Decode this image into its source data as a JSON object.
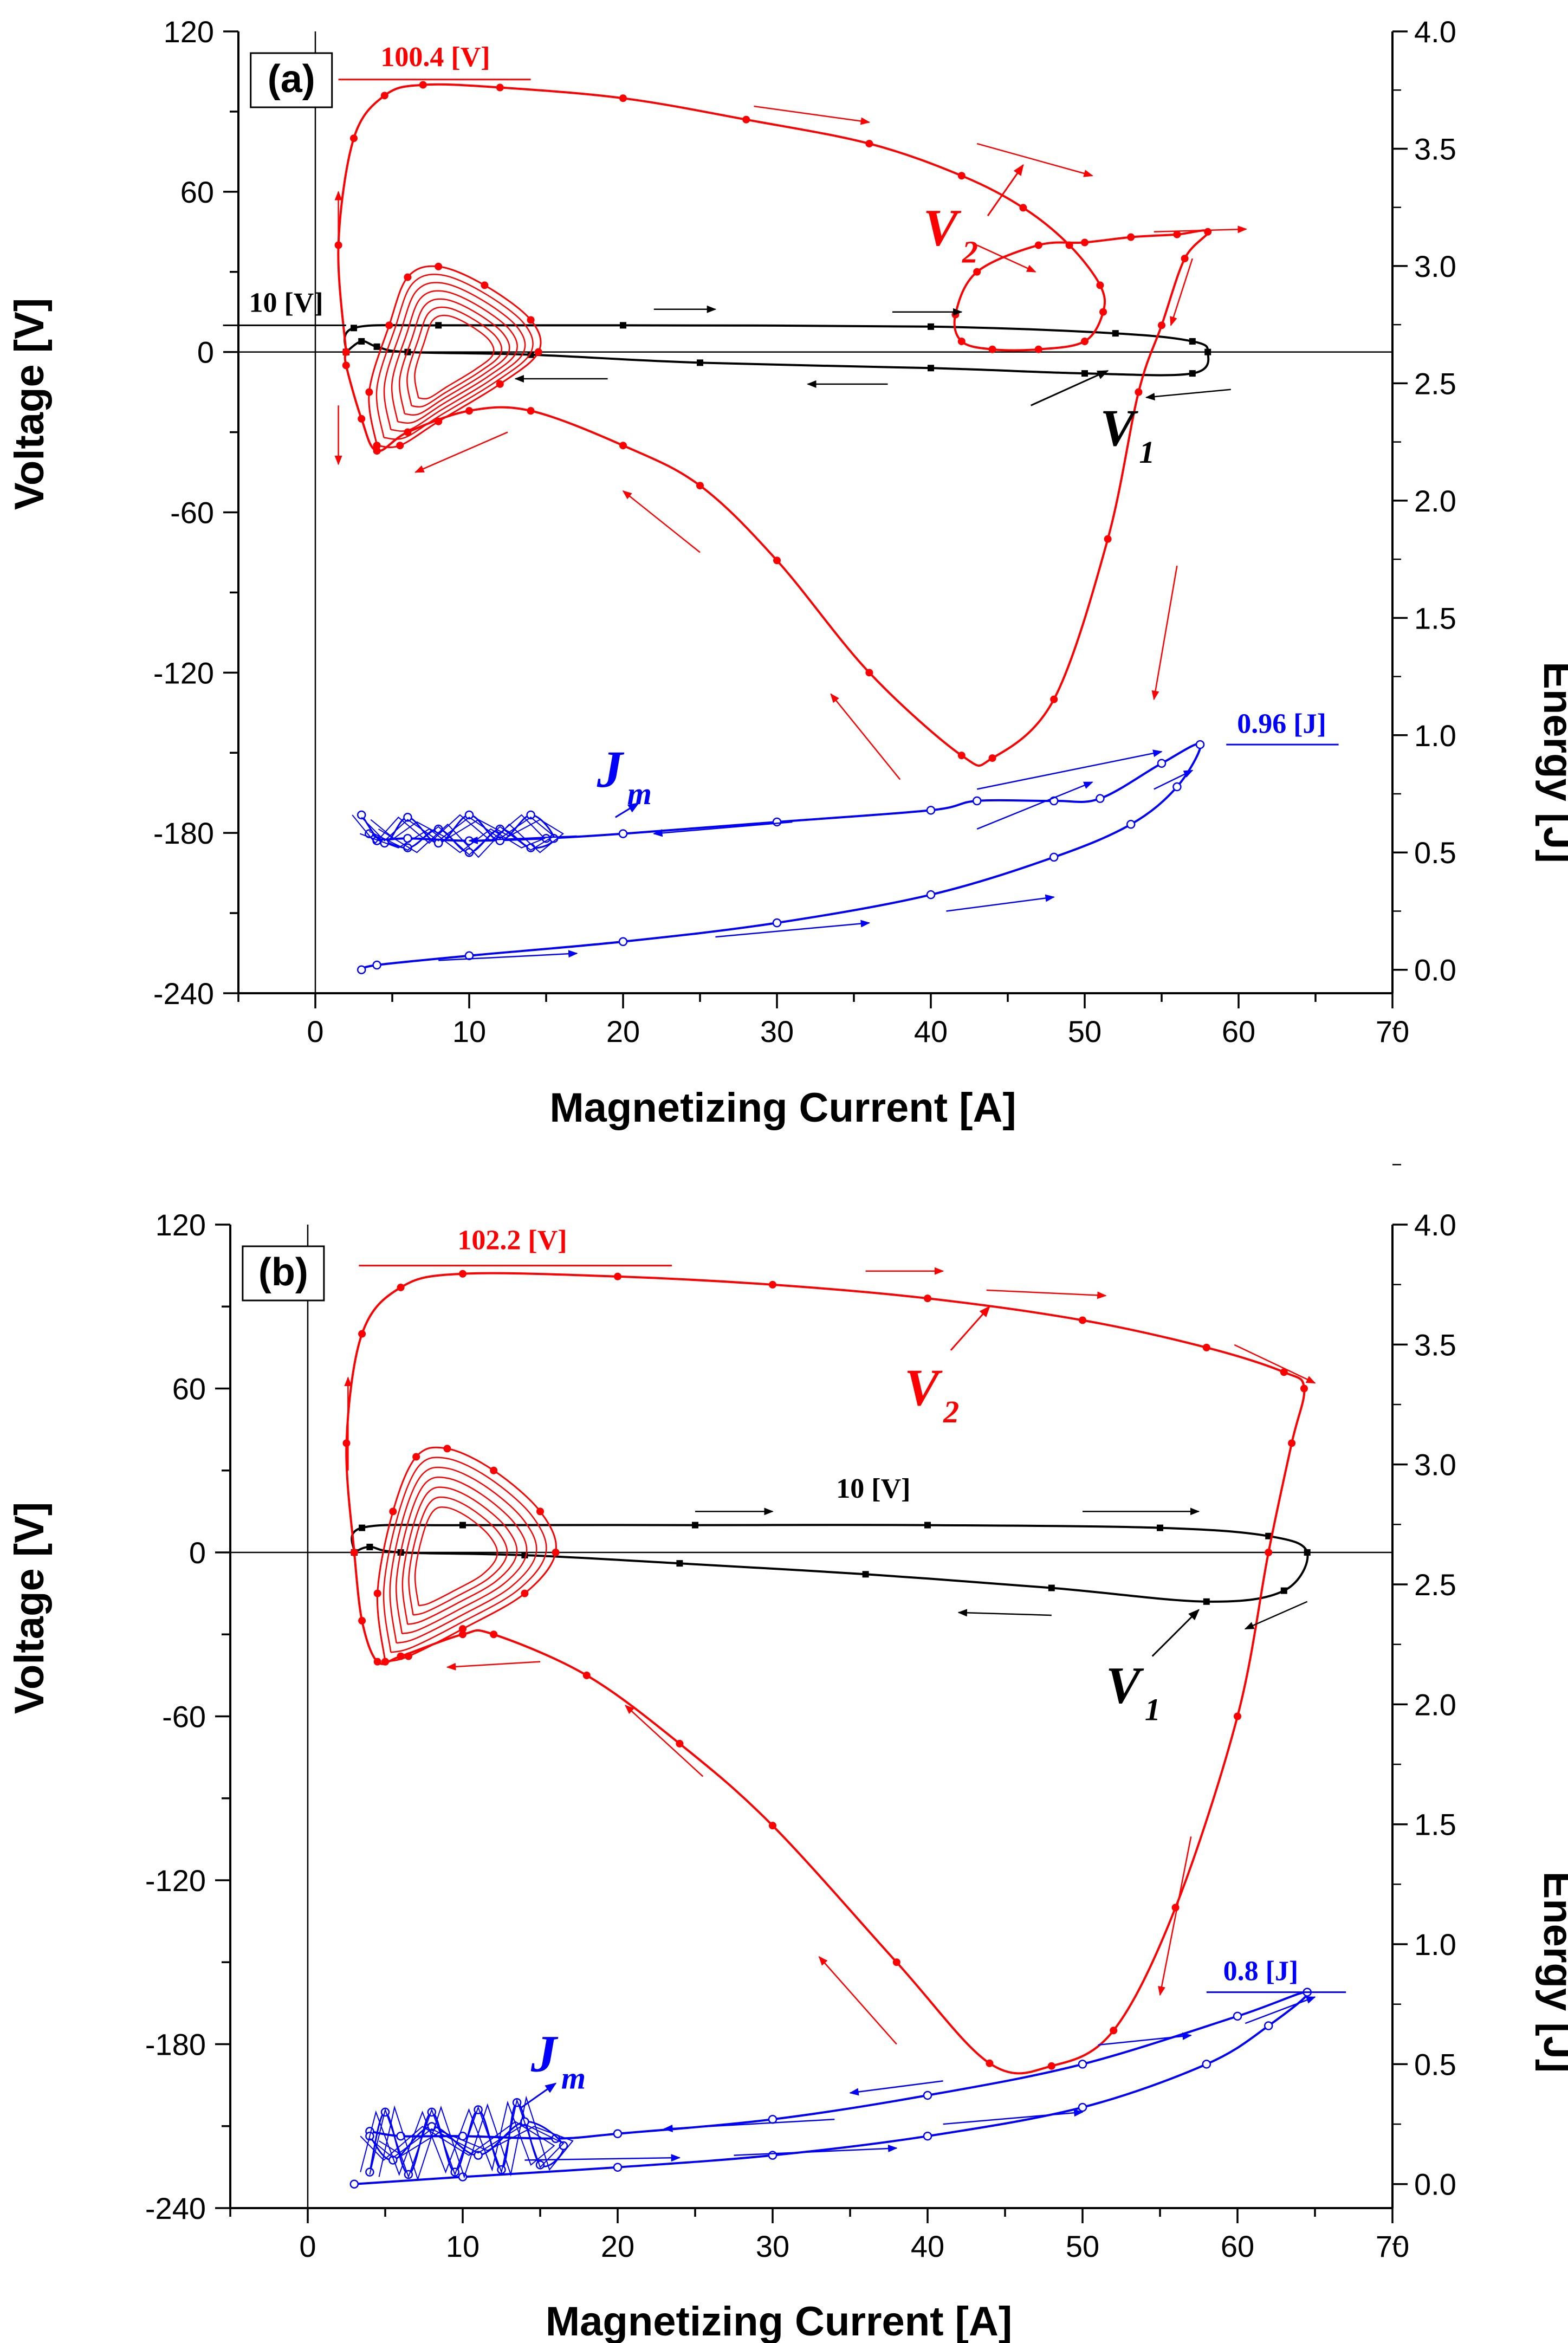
{
  "figure_kind": "Two-panel dual-axis parametric plot",
  "colors": {
    "v1": "#000000",
    "v2": "#ff0000",
    "jm": "#0000ff",
    "axis": "#000000"
  },
  "chart_data": [
    {
      "panel_label": "(a)",
      "type": "line",
      "xlabel": "Magnetizing Current [A]",
      "ylabel_left": "Voltage [V]",
      "ylabel_right": "Energy [J]",
      "xlim": [
        -5,
        70
      ],
      "ylim_left": [
        -240,
        120
      ],
      "ylim_right": [
        -0.1,
        4.0
      ],
      "x_ticks": [
        "0",
        "10",
        "20",
        "30",
        "40",
        "50",
        "60",
        "70"
      ],
      "y_left_ticks": [
        "120",
        "60",
        "0",
        "-60",
        "-120",
        "-180",
        "-240"
      ],
      "y_right_ticks": [
        "4.0",
        "3.5",
        "3.0",
        "2.5",
        "2.0",
        "1.5",
        "1.0",
        "0.5",
        "0.0"
      ],
      "annotations": {
        "v2_peak": "100.4 [V]",
        "v1_peak": "10 [V]",
        "jm_peak": "0.96 [J]"
      },
      "series": [
        {
          "name": "V",
          "sub": "1",
          "axis": "left",
          "color": "#000000",
          "points": [
            [
              2,
              0
            ],
            [
              2.5,
              9
            ],
            [
              8,
              10
            ],
            [
              20,
              10
            ],
            [
              40,
              9.5
            ],
            [
              52,
              7
            ],
            [
              57,
              4
            ],
            [
              58,
              0
            ],
            [
              57,
              -8
            ],
            [
              50,
              -8
            ],
            [
              40,
              -6
            ],
            [
              25,
              -4
            ],
            [
              14,
              -1
            ],
            [
              6,
              0
            ],
            [
              4,
              2
            ],
            [
              3,
              4
            ],
            [
              2,
              0
            ]
          ]
        },
        {
          "name": "V",
          "sub": "2",
          "axis": "left",
          "color": "#ff0000",
          "points": [
            [
              2,
              0
            ],
            [
              1.5,
              40
            ],
            [
              2.5,
              80
            ],
            [
              4.5,
              96
            ],
            [
              7,
              100
            ],
            [
              12,
              99
            ],
            [
              20,
              95
            ],
            [
              28,
              87
            ],
            [
              36,
              78
            ],
            [
              42,
              66
            ],
            [
              46,
              54
            ],
            [
              49,
              40
            ],
            [
              51,
              25
            ],
            [
              51.2,
              15
            ],
            [
              50,
              4
            ],
            [
              47,
              1
            ],
            [
              44,
              1
            ],
            [
              42,
              4
            ],
            [
              41.6,
              14
            ],
            [
              43,
              30
            ],
            [
              47,
              40
            ],
            [
              50,
              41
            ],
            [
              53,
              43
            ],
            [
              56,
              44
            ],
            [
              58,
              45
            ],
            [
              56.5,
              35
            ],
            [
              55,
              10
            ],
            [
              53.5,
              -15
            ],
            [
              51.5,
              -70
            ],
            [
              48,
              -130
            ],
            [
              44,
              -152
            ],
            [
              42,
              -151
            ],
            [
              36,
              -120
            ],
            [
              30,
              -78
            ],
            [
              25,
              -50
            ],
            [
              20,
              -35
            ],
            [
              14,
              -22
            ],
            [
              10,
              -22
            ],
            [
              6,
              -30
            ],
            [
              4,
              -37
            ],
            [
              3,
              -25
            ],
            [
              2,
              -5
            ],
            [
              2,
              0
            ]
          ]
        },
        {
          "name": "V",
          "sub": "2",
          "axis": "left",
          "color": "#ff0000",
          "kind": "oscillation",
          "points": [
            [
              4,
              -35
            ],
            [
              3.5,
              -15
            ],
            [
              4.8,
              10
            ],
            [
              6,
              28
            ],
            [
              8,
              32
            ],
            [
              11,
              25
            ],
            [
              14,
              12
            ],
            [
              14.5,
              0
            ],
            [
              12,
              -12
            ],
            [
              8,
              -26
            ],
            [
              5.5,
              -35
            ],
            [
              4,
              -35
            ]
          ]
        },
        {
          "name": "J",
          "sub": "m",
          "axis": "right",
          "color": "#0000ff",
          "points": [
            [
              3,
              0.0
            ],
            [
              4,
              0.02
            ],
            [
              10,
              0.06
            ],
            [
              20,
              0.12
            ],
            [
              30,
              0.2
            ],
            [
              40,
              0.32
            ],
            [
              48,
              0.48
            ],
            [
              53,
              0.62
            ],
            [
              56,
              0.78
            ],
            [
              57.5,
              0.96
            ],
            [
              55,
              0.88
            ],
            [
              51,
              0.73
            ],
            [
              48,
              0.72
            ],
            [
              43,
              0.72
            ],
            [
              40,
              0.68
            ],
            [
              30,
              0.63
            ],
            [
              20,
              0.58
            ],
            [
              15,
              0.56
            ],
            [
              10,
              0.55
            ],
            [
              6,
              0.56
            ],
            [
              4,
              0.55
            ]
          ]
        },
        {
          "name": "J",
          "sub": "m",
          "axis": "right",
          "color": "#0000ff",
          "kind": "oscillation",
          "points": [
            [
              3,
              0.66
            ],
            [
              4.5,
              0.54
            ],
            [
              6,
              0.65
            ],
            [
              8,
              0.54
            ],
            [
              10,
              0.66
            ],
            [
              12,
              0.55
            ],
            [
              14,
              0.66
            ],
            [
              15.5,
              0.56
            ],
            [
              14,
              0.52
            ],
            [
              12,
              0.6
            ],
            [
              10,
              0.5
            ],
            [
              8,
              0.6
            ],
            [
              6,
              0.52
            ],
            [
              3.5,
              0.58
            ]
          ]
        }
      ]
    },
    {
      "panel_label": "(b)",
      "type": "line",
      "xlabel": "Magnetizing Current [A]",
      "ylabel_left": "Voltage [V]",
      "ylabel_right": "Energy [J]",
      "xlim": [
        -5,
        70
      ],
      "ylim_left": [
        -240,
        120
      ],
      "ylim_right": [
        -0.1,
        4.0
      ],
      "x_ticks": [
        "0",
        "10",
        "20",
        "30",
        "40",
        "50",
        "60",
        "70"
      ],
      "y_left_ticks": [
        "120",
        "60",
        "0",
        "-60",
        "-120",
        "-180",
        "-240"
      ],
      "y_right_ticks": [
        "4.0",
        "3.5",
        "3.0",
        "2.5",
        "2.0",
        "1.5",
        "1.0",
        "0.5",
        "0.0"
      ],
      "annotations": {
        "v2_peak": "102.2 [V]",
        "v1_peak": "10 [V]",
        "jm_peak": "0.8 [J]"
      },
      "series": [
        {
          "name": "V",
          "sub": "1",
          "axis": "left",
          "color": "#000000",
          "points": [
            [
              3,
              0
            ],
            [
              3.5,
              9
            ],
            [
              10,
              10
            ],
            [
              25,
              10
            ],
            [
              40,
              10
            ],
            [
              55,
              9
            ],
            [
              62,
              6
            ],
            [
              64.5,
              0
            ],
            [
              63,
              -14
            ],
            [
              58,
              -18
            ],
            [
              48,
              -13
            ],
            [
              36,
              -8
            ],
            [
              24,
              -4
            ],
            [
              14,
              -1
            ],
            [
              6,
              0
            ],
            [
              4,
              2
            ],
            [
              3,
              0
            ]
          ]
        },
        {
          "name": "V",
          "sub": "2",
          "axis": "left",
          "color": "#ff0000",
          "points": [
            [
              3,
              0
            ],
            [
              2.5,
              40
            ],
            [
              3.5,
              80
            ],
            [
              6,
              97
            ],
            [
              10,
              102
            ],
            [
              20,
              101
            ],
            [
              30,
              98
            ],
            [
              40,
              93
            ],
            [
              50,
              85
            ],
            [
              58,
              75
            ],
            [
              63,
              66
            ],
            [
              64.3,
              60
            ],
            [
              63.5,
              40
            ],
            [
              62,
              0
            ],
            [
              60,
              -60
            ],
            [
              56,
              -130
            ],
            [
              52,
              -175
            ],
            [
              48,
              -188
            ],
            [
              44,
              -187
            ],
            [
              38,
              -150
            ],
            [
              30,
              -100
            ],
            [
              24,
              -70
            ],
            [
              18,
              -45
            ],
            [
              12,
              -30
            ],
            [
              10,
              -30
            ],
            [
              6,
              -38
            ],
            [
              4.5,
              -40
            ],
            [
              3.5,
              -25
            ],
            [
              3,
              0
            ]
          ]
        },
        {
          "name": "V",
          "sub": "2",
          "axis": "left",
          "color": "#ff0000",
          "kind": "oscillation",
          "points": [
            [
              5,
              -40
            ],
            [
              4.5,
              -15
            ],
            [
              5.5,
              15
            ],
            [
              7,
              35
            ],
            [
              9,
              38
            ],
            [
              12,
              30
            ],
            [
              15,
              15
            ],
            [
              16,
              0
            ],
            [
              14,
              -15
            ],
            [
              10,
              -28
            ],
            [
              6.5,
              -38
            ],
            [
              5,
              -40
            ]
          ]
        },
        {
          "name": "J",
          "sub": "m",
          "axis": "right",
          "color": "#0000ff",
          "points": [
            [
              3,
              0.0
            ],
            [
              10,
              0.03
            ],
            [
              20,
              0.07
            ],
            [
              30,
              0.12
            ],
            [
              40,
              0.2
            ],
            [
              50,
              0.32
            ],
            [
              58,
              0.5
            ],
            [
              62,
              0.66
            ],
            [
              64.5,
              0.8
            ],
            [
              60,
              0.7
            ],
            [
              50,
              0.5
            ],
            [
              40,
              0.37
            ],
            [
              30,
              0.27
            ],
            [
              20,
              0.21
            ],
            [
              16,
              0.19
            ],
            [
              10,
              0.2
            ],
            [
              6,
              0.2
            ],
            [
              4,
              0.22
            ]
          ]
        },
        {
          "name": "J",
          "sub": "m",
          "axis": "right",
          "color": "#0000ff",
          "kind": "oscillation",
          "points": [
            [
              4,
              0.05
            ],
            [
              5,
              0.3
            ],
            [
              6.5,
              0.04
            ],
            [
              8,
              0.3
            ],
            [
              9.5,
              0.05
            ],
            [
              11,
              0.31
            ],
            [
              12.5,
              0.06
            ],
            [
              13.5,
              0.34
            ],
            [
              15,
              0.08
            ],
            [
              16.5,
              0.16
            ],
            [
              14,
              0.26
            ],
            [
              11,
              0.12
            ],
            [
              8,
              0.24
            ],
            [
              5.5,
              0.1
            ],
            [
              4,
              0.2
            ]
          ]
        }
      ]
    }
  ]
}
